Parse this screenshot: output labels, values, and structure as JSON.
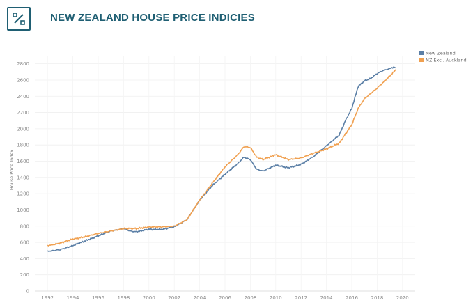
{
  "page": {
    "title": "NEW ZEALAND HOUSE PRICE INDICIES"
  },
  "logo": {
    "icon": "percent-box-icon",
    "color": "#1f5f73"
  },
  "chart_data": {
    "type": "line",
    "title": "NEW ZEALAND HOUSE PRICE INDICIES",
    "xlabel": "",
    "ylabel": "House Price Index",
    "xlim": [
      1991,
      2021
    ],
    "ylim": [
      0,
      2900
    ],
    "xticks": [
      1992,
      1994,
      1996,
      1998,
      2000,
      2002,
      2004,
      2006,
      2008,
      2010,
      2012,
      2014,
      2016,
      2018,
      2020
    ],
    "yticks": [
      0,
      200,
      400,
      600,
      800,
      1000,
      1200,
      1400,
      1600,
      1800,
      2000,
      2200,
      2400,
      2600,
      2800
    ],
    "legend_position": "top-right",
    "grid": true,
    "series": [
      {
        "name": "New Zealand",
        "color": "#5b7fa6",
        "x": [
          1992,
          1993,
          1994,
          1995,
          1996,
          1997,
          1998,
          1998.5,
          1999,
          2000,
          2001,
          2002,
          2003,
          2004,
          2005,
          2006,
          2007,
          2007.5,
          2008,
          2008.5,
          2009,
          2010,
          2011,
          2012,
          2013,
          2014,
          2015,
          2015.5,
          2016,
          2016.5,
          2017,
          2017.5,
          2018,
          2018.5,
          2019,
          2019.3,
          2019.5
        ],
        "y": [
          490,
          510,
          560,
          620,
          680,
          740,
          770,
          740,
          730,
          760,
          760,
          790,
          880,
          1120,
          1300,
          1440,
          1570,
          1650,
          1620,
          1500,
          1480,
          1550,
          1520,
          1560,
          1660,
          1790,
          1920,
          2100,
          2250,
          2520,
          2590,
          2620,
          2680,
          2720,
          2740,
          2760,
          2750
        ]
      },
      {
        "name": "NZ Excl. Auckland",
        "color": "#f0a050",
        "x": [
          1992,
          1993,
          1994,
          1995,
          1996,
          1997,
          1998,
          1999,
          2000,
          2001,
          2002,
          2003,
          2004,
          2005,
          2006,
          2007,
          2007.5,
          2008,
          2008.5,
          2009,
          2010,
          2011,
          2012,
          2013,
          2014,
          2015,
          2016,
          2016.5,
          2017,
          2018,
          2019,
          2019.5
        ],
        "y": [
          560,
          590,
          640,
          670,
          710,
          740,
          770,
          770,
          790,
          790,
          800,
          880,
          1120,
          1330,
          1530,
          1680,
          1780,
          1770,
          1650,
          1620,
          1680,
          1620,
          1640,
          1700,
          1750,
          1820,
          2050,
          2250,
          2370,
          2500,
          2650,
          2730
        ]
      }
    ]
  }
}
